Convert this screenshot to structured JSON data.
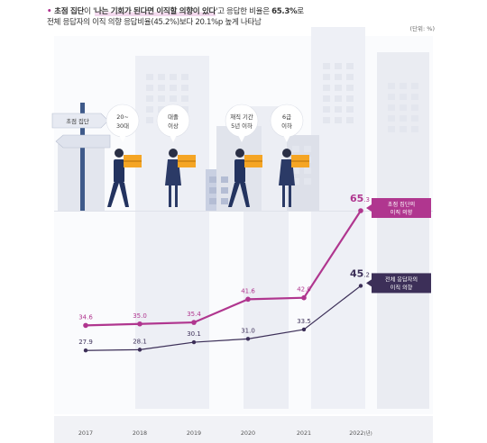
{
  "header": {
    "bullet": "•",
    "line1_a": "초점 집단",
    "line1_b": "이 '",
    "line1_c": "나는 기회가 된다면 이직할 의향이 있다",
    "line1_d": "'고 응답한 비율은 ",
    "line1_e": "65.3%",
    "line1_f": "로",
    "line2": "전체 응답자의 이직 의향 응답비율(45.2%)보다 20.1%p 높게 나타남",
    "unit": "(단위: %)"
  },
  "illustration": {
    "signpost_label": "초점 집단",
    "bubbles": [
      {
        "l1": "20~",
        "l2": "30대"
      },
      {
        "l1": "대졸",
        "l2": "이상"
      },
      {
        "l1": "재직 기간",
        "l2": "5년 이하"
      },
      {
        "l1": "6급",
        "l2": "이하"
      }
    ]
  },
  "colors": {
    "focus": "#b0368f",
    "all": "#3c2f58",
    "building": "#e9ebf3",
    "accent": "#f5a524"
  },
  "chart_data": {
    "type": "line",
    "x": [
      "2017",
      "2018",
      "2019",
      "2020",
      "2021",
      "2022"
    ],
    "x_unit_suffix": "(년)",
    "ylim": [
      20,
      70
    ],
    "grid": false,
    "series": [
      {
        "name": "초점 집단의 이직 의향",
        "label_lines": [
          "초점 집단의",
          "이직 의향"
        ],
        "values": [
          34.6,
          35.0,
          35.4,
          41.6,
          42.0,
          65.3
        ],
        "labels": [
          "34.6",
          "35.0",
          "35.4",
          "41.6",
          "42.0",
          "65.3"
        ],
        "last_big": "65",
        "last_small": ".3",
        "color": "#b0368f"
      },
      {
        "name": "전체 응답자의 이직 의향",
        "label_lines": [
          "전체 응답자의",
          "이직 의향"
        ],
        "values": [
          27.9,
          28.1,
          30.1,
          31.0,
          33.5,
          45.2
        ],
        "labels": [
          "27.9",
          "28.1",
          "30.1",
          "31.0",
          "33.5",
          "45.2"
        ],
        "last_big": "45",
        "last_small": ".2",
        "color": "#3c2f58"
      }
    ]
  }
}
